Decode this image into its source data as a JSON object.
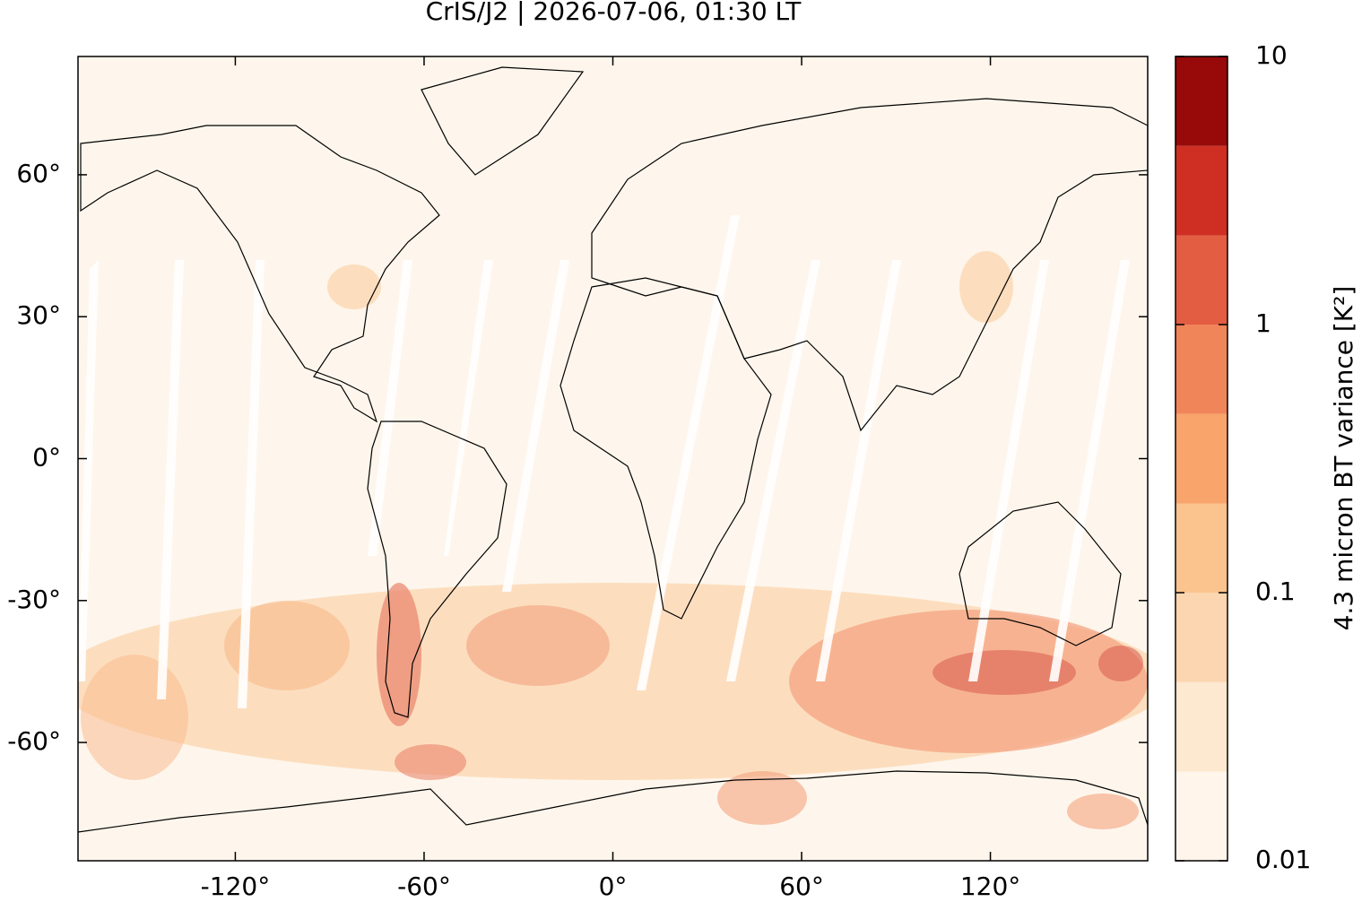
{
  "chart_data": {
    "type": "map",
    "title": "CrIS/J2 | 2026-07-06, 01:30 LT",
    "xlim": [
      -170,
      170
    ],
    "ylim": [
      -85,
      85
    ],
    "xticks": [
      {
        "value": -120,
        "label": "-120°"
      },
      {
        "value": -60,
        "label": "-60°"
      },
      {
        "value": 0,
        "label": "0°"
      },
      {
        "value": 60,
        "label": "60°"
      },
      {
        "value": 120,
        "label": "120°"
      }
    ],
    "yticks": [
      {
        "value": -60,
        "label": "-60°"
      },
      {
        "value": -30,
        "label": "-30°"
      },
      {
        "value": 0,
        "label": "0°"
      },
      {
        "value": 30,
        "label": "30°"
      },
      {
        "value": 60,
        "label": "60°"
      }
    ],
    "colorbar": {
      "label": "4.3 micron BT variance [K²]",
      "log": true,
      "lim": [
        0.01,
        10
      ],
      "ticks": [
        0.01,
        0.1,
        1,
        10
      ],
      "levels": [
        0.01,
        0.0215,
        0.0464,
        0.1,
        0.215,
        0.464,
        1,
        2.15,
        4.64,
        10
      ],
      "colors": [
        "#fff5eb",
        "#fde8d0",
        "#fbd6b0",
        "#fbc48e",
        "#f9a46a",
        "#f1855a",
        "#e35d42",
        "#cf2f22",
        "#980a0a"
      ]
    }
  }
}
